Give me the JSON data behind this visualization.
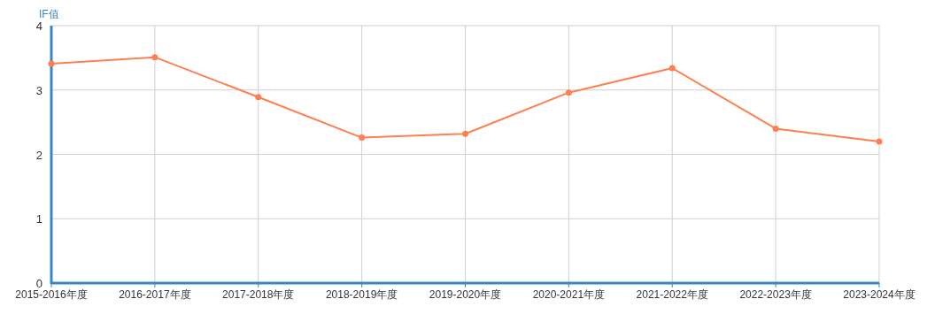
{
  "chart_data": {
    "type": "line",
    "ylabel": "IF值",
    "categories": [
      "2015-2016年度",
      "2016-2017年度",
      "2017-2018年度",
      "2018-2019年度",
      "2019-2020年度",
      "2020-2021年度",
      "2021-2022年度",
      "2022-2023年度",
      "2023-2024年度"
    ],
    "series": [
      {
        "color": "#ff7f50",
        "values": [
          3.41,
          3.51,
          2.89,
          2.26,
          2.32,
          2.96,
          3.34,
          2.4,
          2.2
        ]
      }
    ],
    "ylim": [
      0,
      4
    ],
    "yticks": [
      0,
      1,
      2,
      3,
      4
    ],
    "grid": true,
    "marker": "circle",
    "line_style": "solid"
  }
}
